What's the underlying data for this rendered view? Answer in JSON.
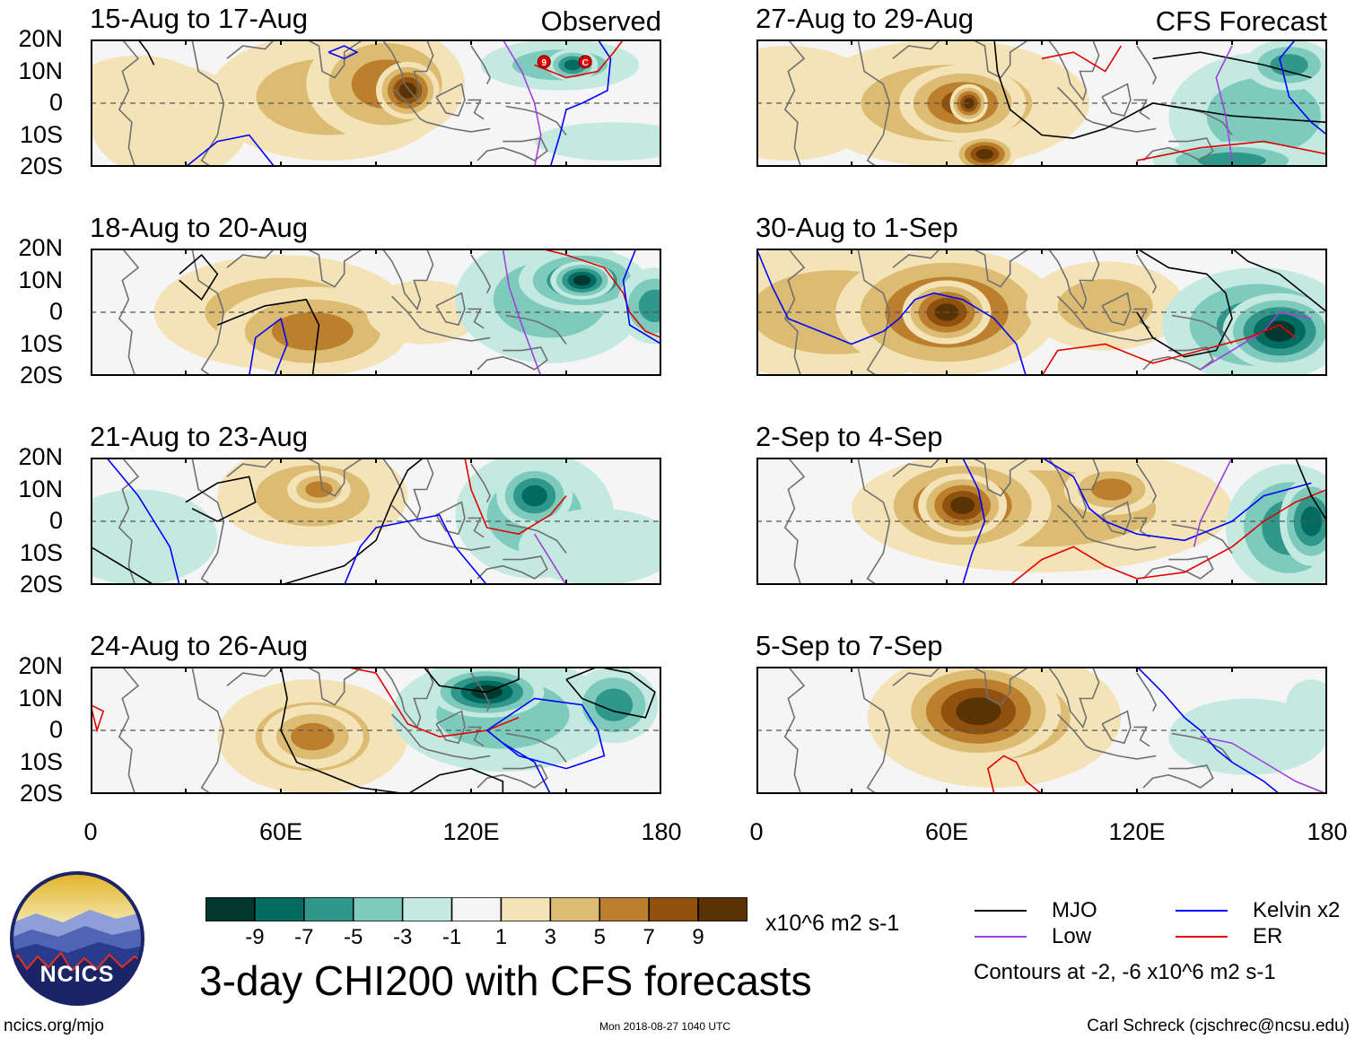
{
  "panels": [
    {
      "title": "15-Aug to 17-Aug",
      "label": "Observed"
    },
    {
      "title": "27-Aug to 29-Aug",
      "label": "CFS Forecast"
    },
    {
      "title": "18-Aug to 20-Aug",
      "label": ""
    },
    {
      "title": "30-Aug to 1-Sep",
      "label": ""
    },
    {
      "title": "21-Aug to 23-Aug",
      "label": ""
    },
    {
      "title": "2-Sep to 4-Sep",
      "label": ""
    },
    {
      "title": "24-Aug to 26-Aug",
      "label": ""
    },
    {
      "title": "5-Sep to 7-Sep",
      "label": ""
    }
  ],
  "y_ticks": [
    "20N",
    "10N",
    "0",
    "10S",
    "20S"
  ],
  "x_ticks": [
    "0",
    "60E",
    "120E",
    "180"
  ],
  "colorbar": {
    "labels": [
      "-9",
      "-7",
      "-5",
      "-3",
      "-1",
      "1",
      "3",
      "5",
      "7",
      "9"
    ],
    "units": "x10^6 m2 s-1",
    "colors": [
      "#00382f",
      "#006b60",
      "#30978a",
      "#7ecbbd",
      "#c4e9e1",
      "#f5f5f5",
      "#f5e3b8",
      "#dcbb73",
      "#bb7f2d",
      "#8e510e",
      "#5a3305"
    ]
  },
  "main_title": "3-day CHI200 with CFS forecasts",
  "legend": {
    "items": [
      {
        "label": "MJO",
        "color": "#000000"
      },
      {
        "label": "Kelvin x2",
        "color": "#0000ff"
      },
      {
        "label": "Low",
        "color": "#a040e0"
      },
      {
        "label": "ER",
        "color": "#e00000"
      }
    ],
    "contour_note": "Contours at -2, -6 x10^6 m2 s-1"
  },
  "logo": {
    "text": "NCICS"
  },
  "footer": {
    "left": "ncics.org/mjo",
    "center": "Mon 2018-08-27 1040 UTC",
    "right": "Carl Schreck (cjschrec@ncsu.edu)"
  },
  "cyclone_symbols": [
    "9",
    "C"
  ],
  "panel_fields": [
    [
      {
        "x": 15,
        "y": 3,
        "rx": 22,
        "ry": 12,
        "v": 2
      },
      {
        "x": 25,
        "y": -6,
        "rx": 25,
        "ry": 18,
        "v": 1
      },
      {
        "x": 75,
        "y": 2,
        "rx": 38,
        "ry": 20,
        "v": 4
      },
      {
        "x": 93,
        "y": 6,
        "rx": 25,
        "ry": 18,
        "v": 6
      },
      {
        "x": 100,
        "y": 4,
        "rx": 10,
        "ry": 9,
        "v": 9
      },
      {
        "x": 148,
        "y": 12,
        "rx": 25,
        "ry": 8,
        "v": -4
      },
      {
        "x": 152,
        "y": 12,
        "rx": 8,
        "ry": 5,
        "v": -7
      },
      {
        "x": 165,
        "y": -12,
        "rx": 25,
        "ry": 6,
        "v": -1
      }
    ],
    [
      {
        "x": 10,
        "y": 0,
        "rx": 30,
        "ry": 18,
        "v": 2
      },
      {
        "x": 60,
        "y": 0,
        "rx": 45,
        "ry": 20,
        "v": 4
      },
      {
        "x": 65,
        "y": 0,
        "rx": 20,
        "ry": 12,
        "v": 7
      },
      {
        "x": 67,
        "y": 0,
        "rx": 6,
        "ry": 6,
        "v": 9
      },
      {
        "x": 72,
        "y": -16,
        "rx": 10,
        "ry": 6,
        "v": 9
      },
      {
        "x": 160,
        "y": -4,
        "rx": 30,
        "ry": 20,
        "v": -4
      },
      {
        "x": 168,
        "y": 12,
        "rx": 14,
        "ry": 8,
        "v": -5
      },
      {
        "x": 150,
        "y": -18,
        "rx": 25,
        "ry": 6,
        "v": -5
      }
    ],
    [
      {
        "x": 60,
        "y": 0,
        "rx": 40,
        "ry": 18,
        "v": 3
      },
      {
        "x": 70,
        "y": -6,
        "rx": 30,
        "ry": 14,
        "v": 5
      },
      {
        "x": 105,
        "y": 0,
        "rx": 18,
        "ry": 10,
        "v": 2
      },
      {
        "x": 145,
        "y": 4,
        "rx": 30,
        "ry": 20,
        "v": -4
      },
      {
        "x": 155,
        "y": 10,
        "rx": 20,
        "ry": 10,
        "v": -7
      },
      {
        "x": 155,
        "y": 10,
        "rx": 10,
        "ry": 6,
        "v": -9
      },
      {
        "x": 178,
        "y": 2,
        "rx": 12,
        "ry": 12,
        "v": -6
      }
    ],
    [
      {
        "x": 25,
        "y": 0,
        "rx": 45,
        "ry": 22,
        "v": 4
      },
      {
        "x": 60,
        "y": 0,
        "rx": 35,
        "ry": 20,
        "v": 7
      },
      {
        "x": 60,
        "y": 0,
        "rx": 14,
        "ry": 10,
        "v": 9
      },
      {
        "x": 110,
        "y": 2,
        "rx": 25,
        "ry": 14,
        "v": 3
      },
      {
        "x": 158,
        "y": -4,
        "rx": 30,
        "ry": 18,
        "v": -5
      },
      {
        "x": 165,
        "y": -6,
        "rx": 18,
        "ry": 12,
        "v": -9
      }
    ],
    [
      {
        "x": 15,
        "y": -5,
        "rx": 25,
        "ry": 15,
        "v": -2
      },
      {
        "x": 70,
        "y": 8,
        "rx": 30,
        "ry": 16,
        "v": 4
      },
      {
        "x": 72,
        "y": 10,
        "rx": 10,
        "ry": 6,
        "v": 6
      },
      {
        "x": 140,
        "y": 2,
        "rx": 25,
        "ry": 20,
        "v": -4
      },
      {
        "x": 140,
        "y": 8,
        "rx": 12,
        "ry": 10,
        "v": -7
      },
      {
        "x": 160,
        "y": -8,
        "rx": 25,
        "ry": 12,
        "v": -2
      }
    ],
    [
      {
        "x": 90,
        "y": 4,
        "rx": 60,
        "ry": 20,
        "v": 4
      },
      {
        "x": 65,
        "y": 5,
        "rx": 28,
        "ry": 16,
        "v": 7
      },
      {
        "x": 65,
        "y": 5,
        "rx": 14,
        "ry": 10,
        "v": 9
      },
      {
        "x": 112,
        "y": 10,
        "rx": 15,
        "ry": 8,
        "v": 6
      },
      {
        "x": 168,
        "y": -2,
        "rx": 20,
        "ry": 20,
        "v": -5
      },
      {
        "x": 175,
        "y": 0,
        "rx": 10,
        "ry": 14,
        "v": -8
      }
    ],
    [
      {
        "x": 70,
        "y": -2,
        "rx": 30,
        "ry": 18,
        "v": 4
      },
      {
        "x": 70,
        "y": -2,
        "rx": 16,
        "ry": 10,
        "v": 6
      },
      {
        "x": 130,
        "y": 5,
        "rx": 35,
        "ry": 18,
        "v": -4
      },
      {
        "x": 125,
        "y": 12,
        "rx": 18,
        "ry": 8,
        "v": -9
      },
      {
        "x": 165,
        "y": 8,
        "rx": 14,
        "ry": 12,
        "v": -5
      }
    ],
    [
      {
        "x": 75,
        "y": 4,
        "rx": 40,
        "ry": 22,
        "v": 4
      },
      {
        "x": 70,
        "y": 6,
        "rx": 26,
        "ry": 16,
        "v": 9
      },
      {
        "x": 155,
        "y": -2,
        "rx": 25,
        "ry": 12,
        "v": -2
      },
      {
        "x": 175,
        "y": 8,
        "rx": 8,
        "ry": 8,
        "v": -1
      }
    ]
  ]
}
